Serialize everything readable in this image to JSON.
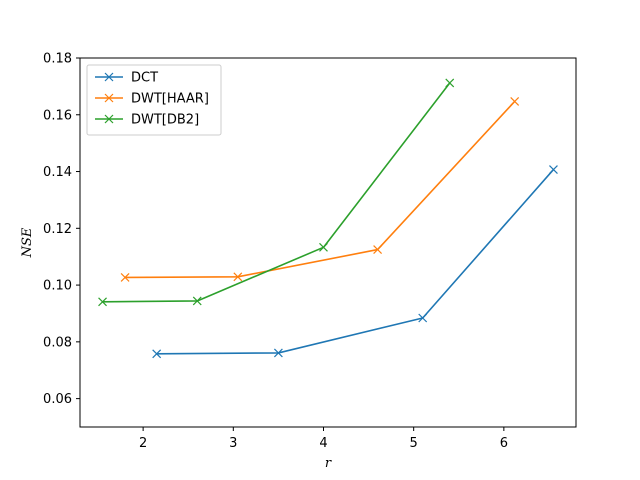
{
  "chart_data": {
    "type": "line",
    "title": "",
    "xlabel": "r",
    "ylabel": "NSE",
    "xlim": [
      1.3,
      6.8
    ],
    "ylim": [
      0.05,
      0.18
    ],
    "x_ticks": [
      2,
      3,
      4,
      5,
      6
    ],
    "y_ticks": [
      0.06,
      0.08,
      0.1,
      0.12,
      0.14,
      0.16,
      0.18
    ],
    "x_tick_labels": [
      "2",
      "3",
      "4",
      "5",
      "6"
    ],
    "y_tick_labels": [
      "0.06",
      "0.08",
      "0.10",
      "0.12",
      "0.14",
      "0.16",
      "0.18"
    ],
    "grid": false,
    "legend_position": "top-left",
    "marker": "x",
    "series": [
      {
        "name": "DCT",
        "color": "#1f77b4",
        "x": [
          2.15,
          3.5,
          5.1,
          6.55
        ],
        "y": [
          0.0758,
          0.0761,
          0.0884,
          0.1407
        ]
      },
      {
        "name": "DWT[HAAR]",
        "color": "#ff7f0e",
        "x": [
          1.8,
          3.05,
          4.6,
          6.12
        ],
        "y": [
          0.1027,
          0.1029,
          0.1125,
          0.1647
        ]
      },
      {
        "name": "DWT[DB2]",
        "color": "#2ca02c",
        "x": [
          1.55,
          2.6,
          4.0,
          5.4
        ],
        "y": [
          0.0941,
          0.0944,
          0.1133,
          0.1712
        ]
      }
    ]
  }
}
